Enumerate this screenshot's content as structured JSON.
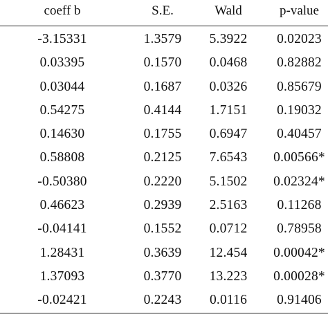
{
  "table": {
    "headers": [
      "coeff b",
      "S.E.",
      "Wald",
      "p-value"
    ],
    "rows": [
      [
        "-3.15331",
        "1.3579",
        "5.3922",
        "0.02023"
      ],
      [
        "0.03395",
        "0.1570",
        "0.0468",
        "0.82882"
      ],
      [
        "0.03044",
        "0.1687",
        "0.0326",
        "0.85679"
      ],
      [
        "0.54275",
        "0.4144",
        "1.7151",
        "0.19032"
      ],
      [
        "0.14630",
        "0.1755",
        "0.6947",
        "0.40457"
      ],
      [
        "0.58808",
        "0.2125",
        "7.6543",
        "0.00566*"
      ],
      [
        "-0.50380",
        "0.2220",
        "5.1502",
        "0.02324*"
      ],
      [
        "0.46623",
        "0.2939",
        "2.5163",
        "0.11268"
      ],
      [
        "-0.04141",
        "0.1552",
        "0.0712",
        "0.78958"
      ],
      [
        "1.28431",
        "0.3639",
        "12.454",
        "0.00042*"
      ],
      [
        "1.37093",
        "0.3770",
        "13.223",
        "0.00028*"
      ],
      [
        "-0.02421",
        "0.2243",
        "0.0116",
        "0.91406"
      ]
    ]
  }
}
